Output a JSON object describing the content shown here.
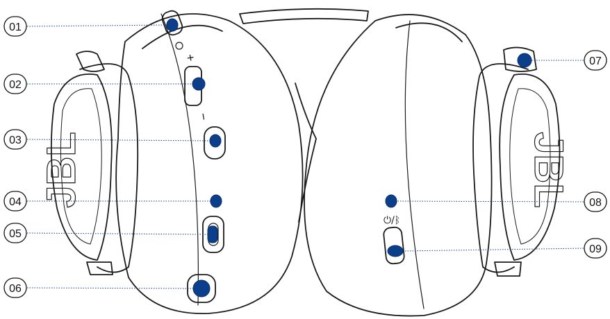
{
  "colors": {
    "outline": "#1a1a1a",
    "marker": "#0b3f8c",
    "leader": "#0b3f8c",
    "background": "#ffffff"
  },
  "jbl_logo_text": "JBL",
  "control_glyphs": {
    "volume_plus": "+",
    "volume_minus": "−",
    "power_bluetooth": "⏻/ᛒ"
  },
  "callouts": [
    {
      "id": "01",
      "label": "01",
      "side": "left",
      "marker": "mic-mute-slider"
    },
    {
      "id": "02",
      "label": "02",
      "side": "left",
      "marker": "volume-slider"
    },
    {
      "id": "03",
      "label": "03",
      "side": "left",
      "marker": "button"
    },
    {
      "id": "04",
      "label": "04",
      "side": "left",
      "marker": "status-led"
    },
    {
      "id": "05",
      "label": "05",
      "side": "left",
      "marker": "usb-c-port"
    },
    {
      "id": "06",
      "label": "06",
      "side": "left",
      "marker": "audio-jack"
    },
    {
      "id": "07",
      "label": "07",
      "side": "right",
      "marker": "boom-mic-socket"
    },
    {
      "id": "08",
      "label": "08",
      "side": "right",
      "marker": "status-led"
    },
    {
      "id": "09",
      "label": "09",
      "side": "right",
      "marker": "power-slider"
    }
  ]
}
